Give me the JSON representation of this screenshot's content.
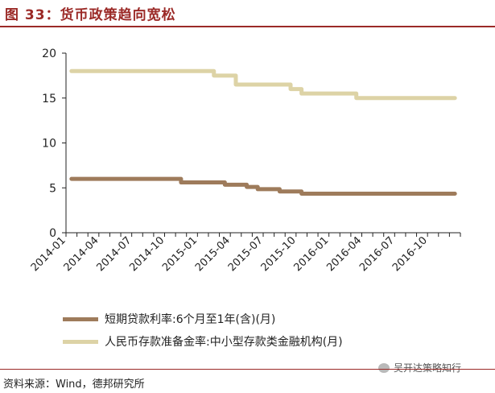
{
  "header": {
    "title": "图 33：货币政策趋向宽松"
  },
  "footer": {
    "source": "资料来源：Wind，德邦研究所",
    "watermark": "吴开达策略知行"
  },
  "chart_data": {
    "type": "line",
    "title": "",
    "xlabel": "",
    "ylabel": "",
    "ylim": [
      0,
      20
    ],
    "yticks": [
      0,
      5,
      10,
      15,
      20
    ],
    "xticks": [
      "2014-01",
      "2014-04",
      "2014-07",
      "2014-10",
      "2015-01",
      "2015-04",
      "2015-07",
      "2015-10",
      "2016-01",
      "2016-04",
      "2016-07",
      "2016-10"
    ],
    "grid": false,
    "legend_position": "bottom",
    "x": [
      "2014-01",
      "2014-02",
      "2014-03",
      "2014-04",
      "2014-05",
      "2014-06",
      "2014-07",
      "2014-08",
      "2014-09",
      "2014-10",
      "2014-11",
      "2014-12",
      "2015-01",
      "2015-02",
      "2015-03",
      "2015-04",
      "2015-05",
      "2015-06",
      "2015-07",
      "2015-08",
      "2015-09",
      "2015-10",
      "2015-11",
      "2015-12",
      "2016-01",
      "2016-02",
      "2016-03",
      "2016-04",
      "2016-05",
      "2016-06",
      "2016-07",
      "2016-08",
      "2016-09",
      "2016-10",
      "2016-11",
      "2016-12"
    ],
    "series": [
      {
        "name": "短期贷款利率:6个月至1年(含)(月)",
        "color": "#9e7b5b",
        "values": [
          6,
          6,
          6,
          6,
          6,
          6,
          6,
          6,
          6,
          6,
          5.6,
          5.6,
          5.6,
          5.6,
          5.35,
          5.35,
          5.1,
          4.85,
          4.85,
          4.6,
          4.6,
          4.35,
          4.35,
          4.35,
          4.35,
          4.35,
          4.35,
          4.35,
          4.35,
          4.35,
          4.35,
          4.35,
          4.35,
          4.35,
          4.35,
          4.35
        ]
      },
      {
        "name": "人民币存款准备金率:中小型存款类金融机构(月)",
        "color": "#ddd3a6",
        "values": [
          18,
          18,
          18,
          18,
          18,
          18,
          18,
          18,
          18,
          18,
          18,
          18,
          18,
          17.5,
          17.5,
          16.5,
          16.5,
          16.5,
          16.5,
          16.5,
          16,
          15.5,
          15.5,
          15.5,
          15.5,
          15.5,
          15,
          15,
          15,
          15,
          15,
          15,
          15,
          15,
          15,
          15
        ]
      }
    ]
  }
}
